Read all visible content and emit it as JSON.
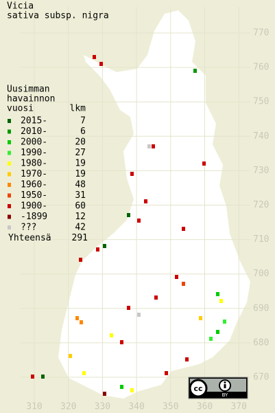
{
  "title": [
    "Vicia",
    "sativa subsp. nigra"
  ],
  "legend": {
    "heading": [
      "Uusimman",
      "havainnon",
      "vuosi"
    ],
    "count_heading": "lkm",
    "items": [
      {
        "label": "2015-",
        "count": 7,
        "color": "#006400"
      },
      {
        "label": "2010-",
        "count": 6,
        "color": "#009900"
      },
      {
        "label": "2000-",
        "count": 20,
        "color": "#00cc00"
      },
      {
        "label": "1990-",
        "count": 27,
        "color": "#33ee33"
      },
      {
        "label": "1980-",
        "count": 19,
        "color": "#ffff00"
      },
      {
        "label": "1970-",
        "count": 19,
        "color": "#ffcc00"
      },
      {
        "label": "1960-",
        "count": 48,
        "color": "#ff8800"
      },
      {
        "label": "1950-",
        "count": 31,
        "color": "#ee4400"
      },
      {
        "label": "1900-",
        "count": 60,
        "color": "#cc0000"
      },
      {
        "label": "-1899",
        "count": 12,
        "color": "#880000"
      },
      {
        "label": "???",
        "count": 42,
        "color": "#c8c8c8"
      }
    ],
    "total_label": "Yhteensä",
    "total": 291
  },
  "grid": {
    "y_labels": [
      "770",
      "760",
      "750",
      "740",
      "730",
      "720",
      "710",
      "700",
      "690",
      "680",
      "670"
    ],
    "x_labels": [
      "310",
      "320",
      "330",
      "340",
      "350",
      "360",
      "370"
    ]
  },
  "badge": "BY"
}
